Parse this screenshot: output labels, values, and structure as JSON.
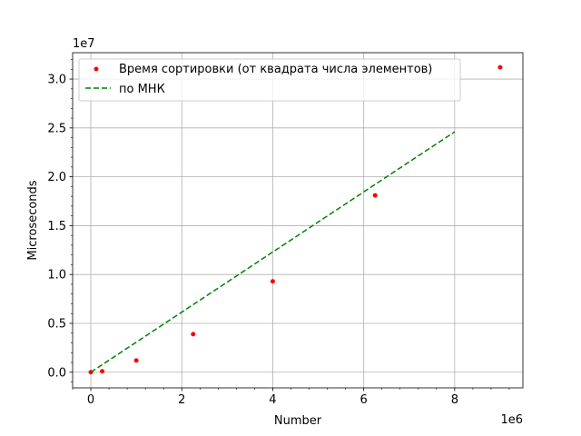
{
  "chart_data": {
    "type": "scatter",
    "title": "",
    "xlabel": "Number",
    "ylabel": "Microseconds",
    "x_offset_text": "1e6",
    "y_offset_text": "1e7",
    "xlim": [
      -400000,
      9500000
    ],
    "ylim": [
      -1600000,
      32700000
    ],
    "x_ticks": [
      0,
      2000000,
      4000000,
      6000000,
      8000000
    ],
    "x_tick_labels": [
      "0",
      "2",
      "4",
      "6",
      "8"
    ],
    "y_ticks": [
      0,
      5000000,
      10000000,
      15000000,
      20000000,
      25000000,
      30000000
    ],
    "y_tick_labels": [
      "0.0",
      "0.5",
      "1.0",
      "1.5",
      "2.0",
      "2.5",
      "3.0"
    ],
    "grid": true,
    "legend_position": "top-left",
    "series": [
      {
        "name": "Время сортировки (от квадрата числа элементов)",
        "kind": "scatter",
        "color": "#ff0000",
        "points": [
          {
            "x": 0,
            "y": 0
          },
          {
            "x": 250000,
            "y": 100000
          },
          {
            "x": 1000000,
            "y": 1200000
          },
          {
            "x": 2250000,
            "y": 3900000
          },
          {
            "x": 4000000,
            "y": 9300000
          },
          {
            "x": 6250000,
            "y": 18100000
          },
          {
            "x": 9000000,
            "y": 31200000
          }
        ]
      },
      {
        "name": "по МНК",
        "kind": "line",
        "style": "dashed",
        "color": "#008000",
        "points": [
          {
            "x": 0,
            "y": 0
          },
          {
            "x": 8000000,
            "y": 24600000
          }
        ]
      }
    ]
  }
}
